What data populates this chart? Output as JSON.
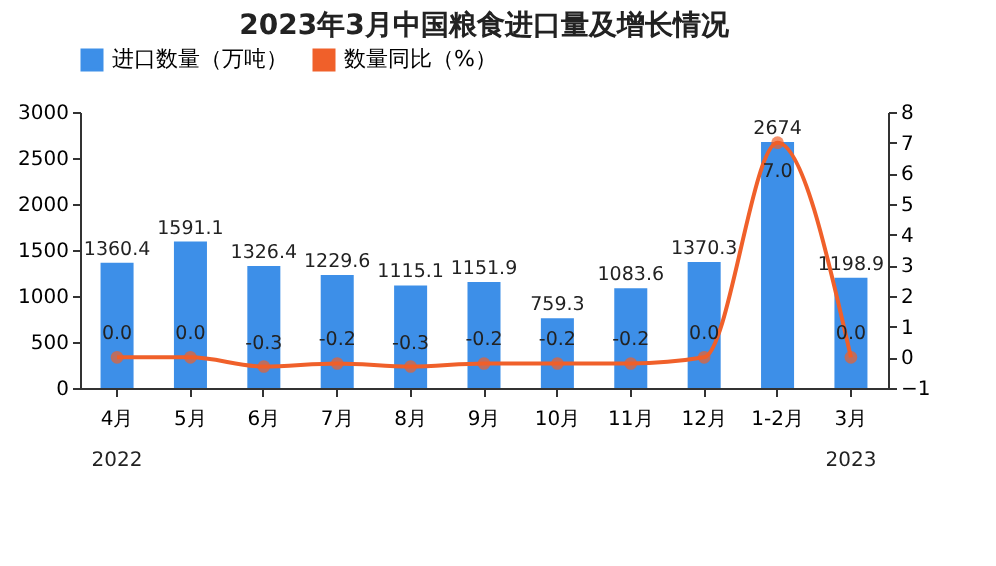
{
  "chart_data": {
    "type": "bar",
    "title": "2023年3月中国粮食进口量及增长情况",
    "categories": [
      "4月",
      "5月",
      "6月",
      "7月",
      "8月",
      "9月",
      "10月",
      "11月",
      "12月",
      "1-2月",
      "3月"
    ],
    "series": [
      {
        "name": "进口数量（万吨）",
        "color": "#3d8fe8",
        "values": [
          1360.4,
          1591.1,
          1326.4,
          1229.6,
          1115.1,
          1151.9,
          759.3,
          1083.6,
          1370.3,
          2674,
          1198.9
        ]
      },
      {
        "name": "数量同比（%）",
        "type": "line",
        "axis": "y2",
        "color": "#f0602a",
        "marker": "circle",
        "values": [
          0.0,
          0.0,
          -0.3,
          -0.2,
          -0.3,
          -0.2,
          -0.2,
          -0.2,
          0.0,
          7.0,
          0.0
        ],
        "value_labels": [
          "0.0",
          "0.0",
          "-0.3",
          "-0.2",
          "-0.3",
          "-0.2",
          "-0.2",
          "-0.2",
          "0.0",
          "7.0",
          "0.0"
        ]
      }
    ],
    "data_labels": true,
    "ylim": [
      0,
      3000
    ],
    "yticks": [
      0,
      500,
      1000,
      1500,
      2000,
      2500,
      3000
    ],
    "y2lim": [
      -1,
      8
    ],
    "y2ticks": [
      -1,
      0,
      1,
      2,
      3,
      4,
      5,
      6,
      7,
      8
    ],
    "legend": "top",
    "annotations": [
      "2022",
      "2023"
    ]
  }
}
